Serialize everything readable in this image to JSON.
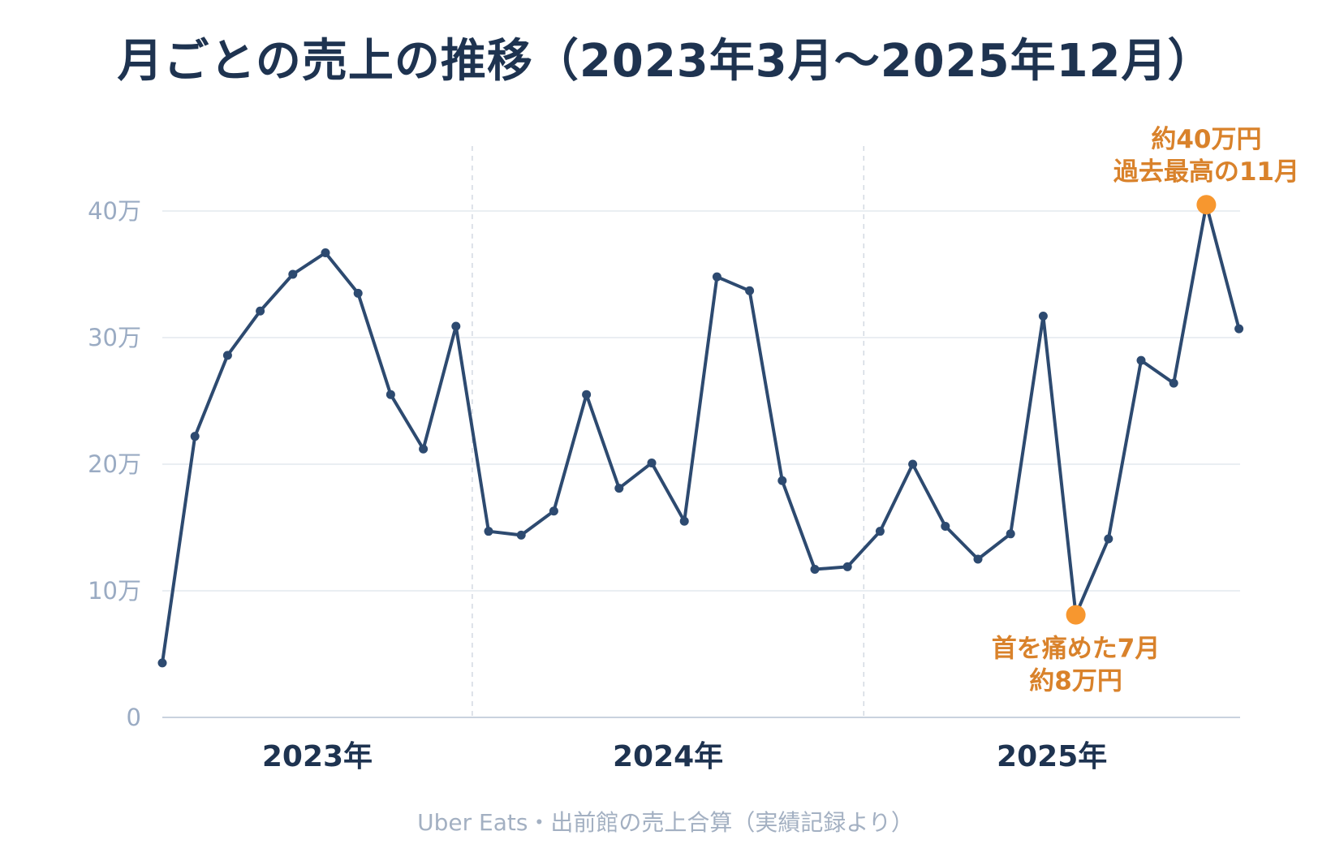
{
  "chart_data": {
    "type": "line",
    "title": "月ごとの売上の推移（2023年3月～2025年12月）",
    "source": "Uber Eats・出前館の売上合算（実績記録より）",
    "x": [
      "2023-03",
      "2023-04",
      "2023-05",
      "2023-06",
      "2023-07",
      "2023-08",
      "2023-09",
      "2023-10",
      "2023-11",
      "2023-12",
      "2024-01",
      "2024-02",
      "2024-03",
      "2024-04",
      "2024-05",
      "2024-06",
      "2024-07",
      "2024-08",
      "2024-09",
      "2024-10",
      "2024-11",
      "2024-12",
      "2025-01",
      "2025-02",
      "2025-03",
      "2025-04",
      "2025-05",
      "2025-06",
      "2025-07",
      "2025-08",
      "2025-09",
      "2025-10",
      "2025-11",
      "2025-12"
    ],
    "values": [
      43000,
      222000,
      286000,
      321000,
      350000,
      367000,
      335000,
      255000,
      212000,
      309000,
      147000,
      144000,
      163000,
      255000,
      181000,
      201000,
      155000,
      348000,
      337000,
      187000,
      117000,
      119000,
      147000,
      200000,
      151000,
      125000,
      145000,
      317000,
      81000,
      141000,
      282000,
      264000,
      405000,
      307000
    ],
    "ylim": [
      0,
      45
    ],
    "yticks": [
      0,
      10,
      20,
      30,
      40
    ],
    "ytick_labels": [
      "0",
      "10万",
      "20万",
      "30万",
      "40万"
    ],
    "year_labels": [
      "2023年",
      "2024年",
      "2025年"
    ],
    "grid": "horizontal",
    "colors": {
      "line": "#2d4a70",
      "highlight": "#f7972f",
      "annotation": "#d9822b",
      "grid": "#e4e8ee"
    },
    "annotations": [
      {
        "index": 32,
        "lines": [
          "約40万円",
          "過去最高の11月"
        ]
      },
      {
        "index": 28,
        "lines": [
          "首を痛めた7月",
          "約8万円"
        ]
      }
    ]
  }
}
